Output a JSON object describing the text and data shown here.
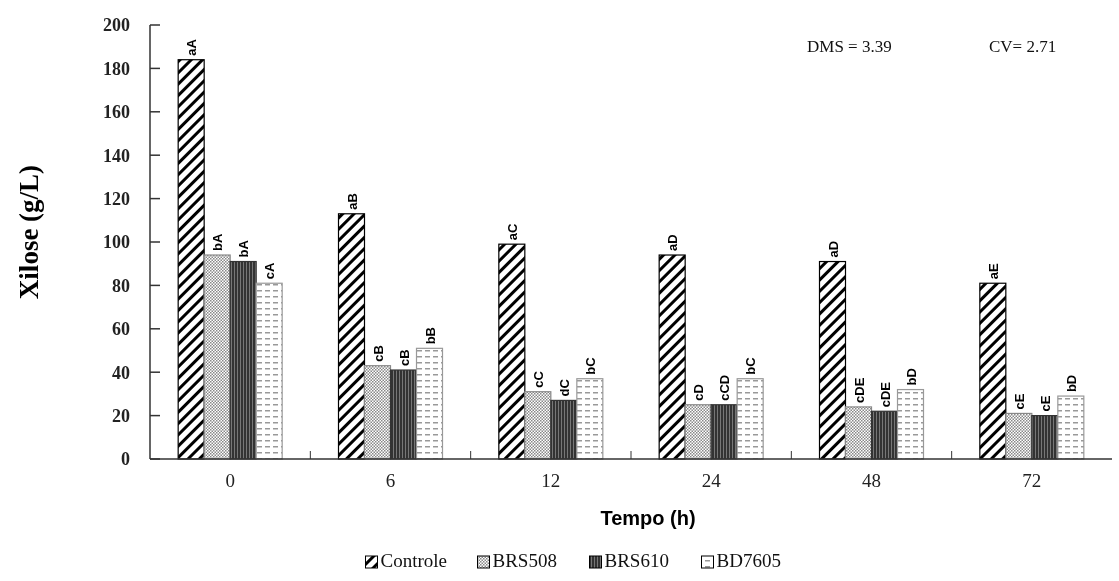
{
  "chart_data": {
    "type": "bar",
    "xlabel": "Tempo (h)",
    "ylabel": "Xilose (g/L)",
    "categories": [
      "0",
      "6",
      "12",
      "24",
      "48",
      "72"
    ],
    "series": [
      {
        "name": "Controle",
        "color": "#000000",
        "values": [
          184,
          113,
          99,
          94,
          91,
          81
        ],
        "value_labels": [
          "aA",
          "aB",
          "aC",
          "aD",
          "aD",
          "aE"
        ]
      },
      {
        "name": "BRS508",
        "color": "#888888",
        "values": [
          94,
          43,
          31,
          25,
          24,
          21
        ],
        "value_labels": [
          "bA",
          "cB",
          "cC",
          "cD",
          "cDE",
          "cE"
        ]
      },
      {
        "name": "BRS610",
        "color": "#333333",
        "values": [
          91,
          41,
          27,
          25,
          22,
          20
        ],
        "value_labels": [
          "bA",
          "cB",
          "dC",
          "cCD",
          "cDE",
          "cE"
        ]
      },
      {
        "name": "BD7605",
        "color": "#999999",
        "values": [
          81,
          51,
          37,
          37,
          32,
          29
        ],
        "value_labels": [
          "cA",
          "bB",
          "bC",
          "bC",
          "bD",
          "bD"
        ]
      }
    ],
    "ylim": [
      0,
      200
    ],
    "yticks": [
      0,
      20,
      40,
      60,
      80,
      100,
      120,
      140,
      160,
      180,
      200
    ],
    "grid": false,
    "legend": "bottom",
    "annotations": [
      "DMS = 3.39",
      "CV= 2.71"
    ]
  }
}
